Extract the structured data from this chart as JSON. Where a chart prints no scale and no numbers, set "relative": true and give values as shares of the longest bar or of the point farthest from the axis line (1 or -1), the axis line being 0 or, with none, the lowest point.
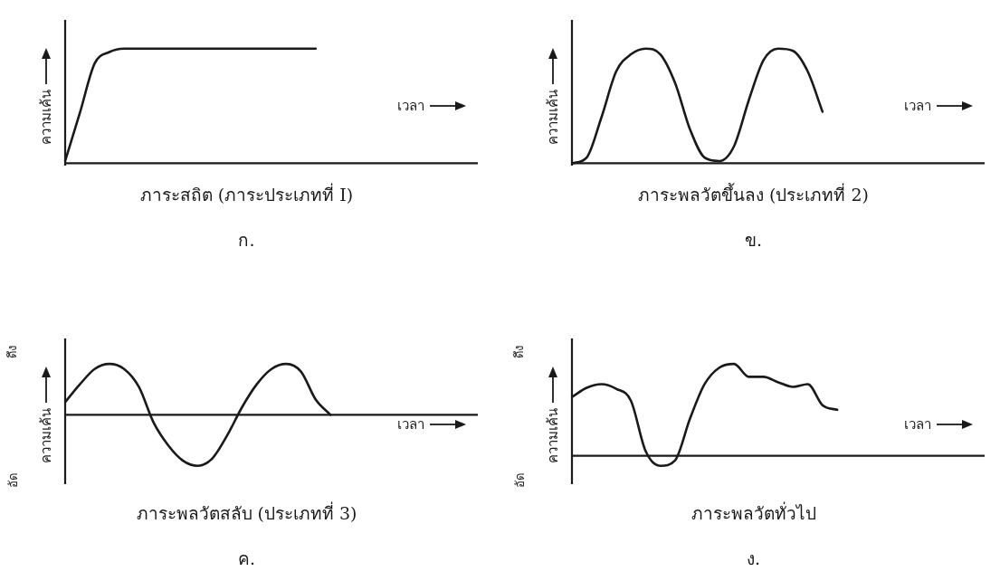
{
  "chart_data": [
    {
      "type": "line",
      "relative": true,
      "marker": "none",
      "title": "ภาระสถิต (ภาระประเภทที่ I)",
      "subtitle": "ก.",
      "xlabel": "เวลา",
      "ylabel": "ความเค้น",
      "categories": [
        null,
        null,
        null,
        null,
        null,
        null,
        null,
        null,
        null,
        null,
        null,
        null,
        null,
        null,
        null,
        null,
        null,
        null,
        null,
        null,
        null,
        null,
        null,
        null,
        null,
        null,
        null,
        null,
        null
      ],
      "series": [
        {
          "color": "#1a1a1a",
          "values": [
            0.02,
            0.44,
            0.87,
            0.97,
            1,
            1,
            1,
            1,
            1,
            1,
            1,
            1,
            1,
            1,
            1,
            1,
            1,
            1,
            null,
            null,
            null,
            null,
            null,
            null,
            null,
            null,
            null,
            null,
            null
          ]
        }
      ]
    },
    {
      "type": "line",
      "relative": true,
      "marker": "none",
      "title": "ภาระพลวัตขึ้นลง (ประเภทที่ 2)",
      "subtitle": "ข.",
      "xlabel": "เวลา",
      "ylabel": "ความเค้น",
      "categories": [
        null,
        null,
        null,
        null,
        null,
        null,
        null,
        null,
        null,
        null,
        null,
        null,
        null,
        null,
        null,
        null,
        null,
        null,
        null,
        null,
        null,
        null,
        null,
        null,
        null,
        null,
        null,
        null,
        null
      ],
      "series": [
        {
          "color": "#1a1a1a",
          "values": [
            0,
            0.05,
            0.4,
            0.8,
            0.95,
            1,
            0.95,
            0.7,
            0.3,
            0.05,
            0.02,
            0.15,
            0.55,
            0.9,
            1,
            0.98,
            0.8,
            0.45,
            null,
            null,
            null,
            null,
            null,
            null,
            null,
            null,
            null,
            null,
            null
          ]
        }
      ]
    },
    {
      "type": "line",
      "relative": true,
      "marker": "none",
      "title": "ภาระพลวัตสลับ (ประเภทที่ 3)",
      "subtitle": "ค.",
      "xlabel": "เวลา",
      "ylabel": "ความเค้น",
      "annotations": [
        "ดึง",
        "อัด"
      ],
      "categories": [
        null,
        null,
        null,
        null,
        null,
        null,
        null,
        null,
        null,
        null,
        null,
        null,
        null,
        null,
        null,
        null,
        null,
        null,
        null,
        null,
        null,
        null,
        null,
        null,
        null,
        null,
        null,
        null,
        null
      ],
      "series": [
        {
          "color": "#1a1a1a",
          "values": [
            0.25,
            0.6,
            0.9,
            1,
            0.9,
            0.55,
            -0.15,
            -0.6,
            -0.9,
            -1,
            -0.85,
            -0.4,
            0.15,
            0.6,
            0.9,
            1,
            0.85,
            0.3,
            0,
            null,
            null,
            null,
            null,
            null,
            null,
            null,
            null,
            null,
            null
          ]
        }
      ]
    },
    {
      "type": "line",
      "relative": true,
      "marker": "none",
      "title": "ภาระพลวัตทั่วไป",
      "subtitle": "ง.",
      "xlabel": "เวลา",
      "ylabel": "ความเค้น",
      "annotations": [
        "ดึง",
        "อัด"
      ],
      "categories": [
        null,
        null,
        null,
        null,
        null,
        null,
        null,
        null,
        null,
        null,
        null,
        null,
        null,
        null,
        null,
        null,
        null,
        null,
        null,
        null,
        null,
        null,
        null,
        null,
        null,
        null,
        null,
        null,
        null
      ],
      "series": [
        {
          "color": "#1a1a1a",
          "values": [
            0.64,
            0.74,
            0.78,
            0.73,
            0.6,
            0.05,
            -0.11,
            -0.05,
            0.4,
            0.78,
            0.96,
            1,
            0.86,
            0.86,
            0.8,
            0.75,
            0.78,
            0.55,
            0.5,
            null,
            null,
            null,
            null,
            null,
            null,
            null,
            null,
            null,
            null
          ]
        }
      ]
    }
  ]
}
